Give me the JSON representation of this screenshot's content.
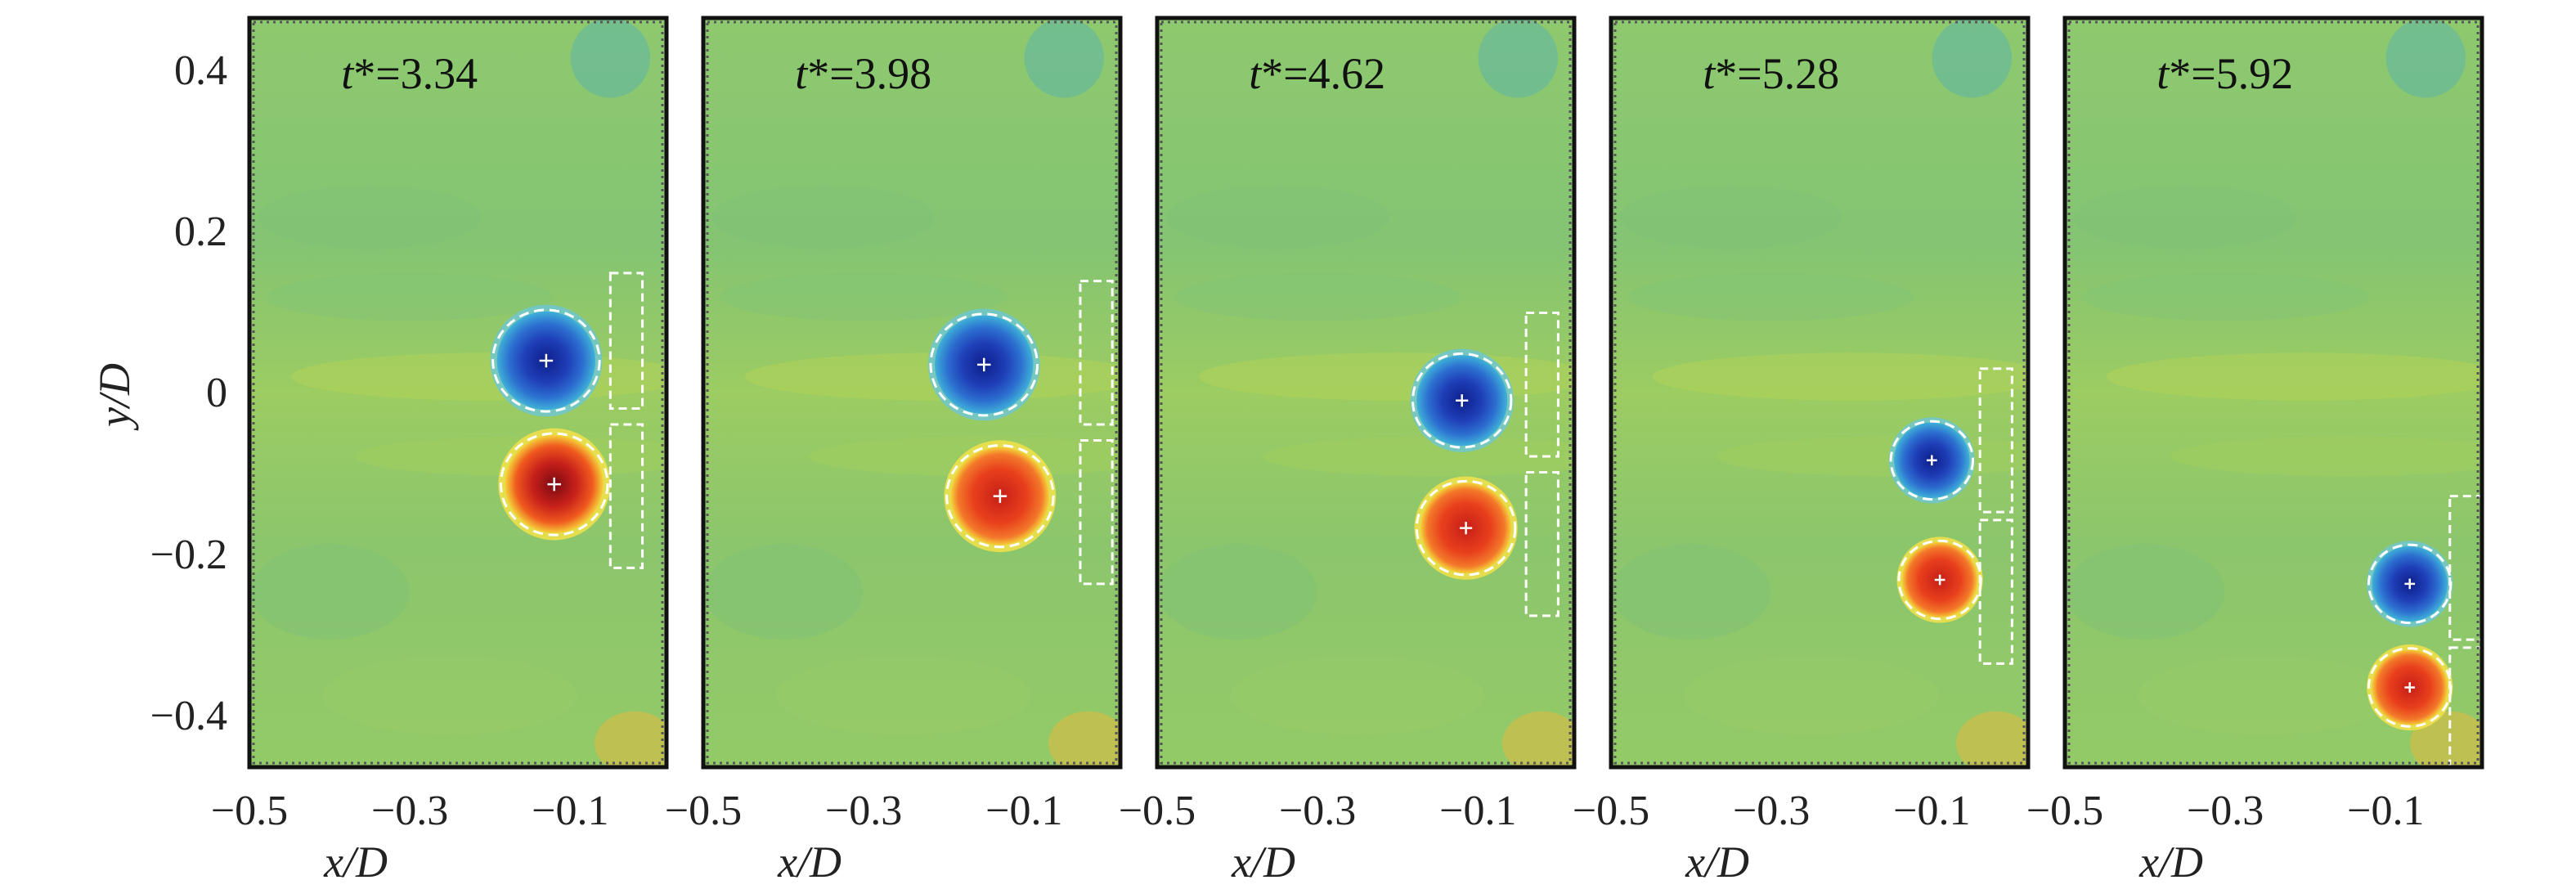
{
  "figure": {
    "y_axis_label": "y/D",
    "x_axis_label": "x/D",
    "y_tick_labels": [
      "0.4",
      "0.2",
      "0",
      "−0.2",
      "−0.4"
    ],
    "x_tick_labels": [
      "−0.5",
      "−0.3",
      "−0.1"
    ],
    "colors": {
      "background_field": "#8cc96a",
      "negative_vortex": "#1f3fb8",
      "positive_vortex": "#d62a1a",
      "outline": "#ffffff"
    }
  },
  "chart_data": [
    {
      "type": "heatmap",
      "time_label": "t*=3.34",
      "xlabel": "x/D",
      "ylabel": "y/D",
      "xlim": [
        -0.5,
        0.02
      ],
      "ylim": [
        -0.47,
        0.47
      ],
      "vortices": [
        {
          "sign": "negative",
          "center": [
            -0.13,
            0.04
          ],
          "radius": 0.065
        },
        {
          "sign": "positive",
          "center": [
            -0.12,
            -0.115
          ],
          "radius": 0.065
        }
      ],
      "boxes": [
        {
          "x0": -0.05,
          "x1": -0.01,
          "y0": -0.02,
          "y1": 0.15
        },
        {
          "x0": -0.05,
          "x1": -0.01,
          "y0": -0.22,
          "y1": -0.04
        }
      ]
    },
    {
      "type": "heatmap",
      "time_label": "t*=3.98",
      "xlabel": "x/D",
      "ylabel": "y/D",
      "xlim": [
        -0.5,
        0.02
      ],
      "ylim": [
        -0.47,
        0.47
      ],
      "vortices": [
        {
          "sign": "negative",
          "center": [
            -0.15,
            0.035
          ],
          "radius": 0.065
        },
        {
          "sign": "positive",
          "center": [
            -0.13,
            -0.13
          ],
          "radius": 0.065
        }
      ],
      "boxes": [
        {
          "x0": -0.03,
          "x1": 0.01,
          "y0": -0.04,
          "y1": 0.14
        },
        {
          "x0": -0.03,
          "x1": 0.01,
          "y0": -0.24,
          "y1": -0.06
        }
      ]
    },
    {
      "type": "heatmap",
      "time_label": "t*=4.62",
      "xlabel": "x/D",
      "ylabel": "y/D",
      "xlim": [
        -0.5,
        0.02
      ],
      "ylim": [
        -0.47,
        0.47
      ],
      "vortices": [
        {
          "sign": "negative",
          "center": [
            -0.12,
            -0.01
          ],
          "radius": 0.06
        },
        {
          "sign": "positive",
          "center": [
            -0.115,
            -0.17
          ],
          "radius": 0.06
        }
      ],
      "boxes": [
        {
          "x0": -0.04,
          "x1": 0.0,
          "y0": -0.08,
          "y1": 0.1
        },
        {
          "x0": -0.04,
          "x1": 0.0,
          "y0": -0.28,
          "y1": -0.1
        }
      ]
    },
    {
      "type": "heatmap",
      "time_label": "t*=5.28",
      "xlabel": "x/D",
      "ylabel": "y/D",
      "xlim": [
        -0.5,
        0.02
      ],
      "ylim": [
        -0.47,
        0.47
      ],
      "vortices": [
        {
          "sign": "negative",
          "center": [
            -0.1,
            -0.085
          ],
          "radius": 0.05
        },
        {
          "sign": "positive",
          "center": [
            -0.09,
            -0.235
          ],
          "radius": 0.05
        }
      ],
      "boxes": [
        {
          "x0": -0.04,
          "x1": 0.0,
          "y0": -0.15,
          "y1": 0.03
        },
        {
          "x0": -0.04,
          "x1": 0.0,
          "y0": -0.34,
          "y1": -0.16
        }
      ]
    },
    {
      "type": "heatmap",
      "time_label": "t*=5.92",
      "xlabel": "x/D",
      "ylabel": "y/D",
      "xlim": [
        -0.5,
        0.02
      ],
      "ylim": [
        -0.47,
        0.47
      ],
      "vortices": [
        {
          "sign": "negative",
          "center": [
            -0.07,
            -0.24
          ],
          "radius": 0.05
        },
        {
          "sign": "positive",
          "center": [
            -0.07,
            -0.37
          ],
          "radius": 0.05
        }
      ],
      "boxes": [
        {
          "x0": -0.02,
          "x1": 0.02,
          "y0": -0.31,
          "y1": -0.13
        },
        {
          "x0": -0.02,
          "x1": 0.02,
          "y0": -0.47,
          "y1": -0.32
        }
      ]
    }
  ]
}
